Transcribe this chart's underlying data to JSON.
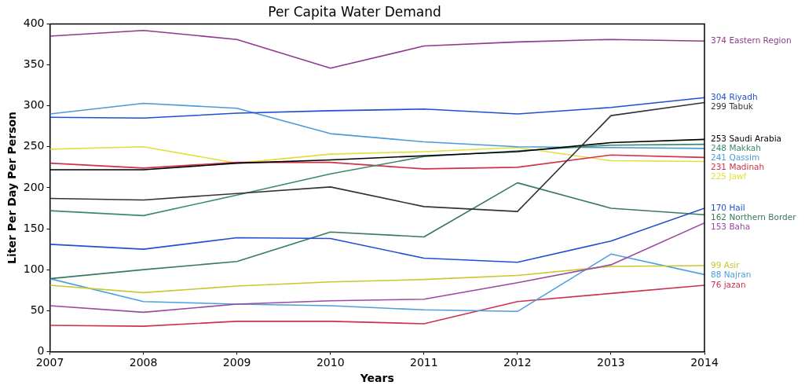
{
  "chart_data": {
    "type": "line",
    "title": "Per Capita Water Demand",
    "xlabel": "Years",
    "ylabel": "Liter Per Day Per Person",
    "x": [
      2007,
      2008,
      2009,
      2010,
      2011,
      2012,
      2013,
      2014
    ],
    "xlim": [
      2007,
      2014
    ],
    "xticks": [
      2007,
      2008,
      2009,
      2010,
      2011,
      2012,
      2013,
      2014
    ],
    "ylim": [
      0,
      400
    ],
    "yticks": [
      0,
      50,
      100,
      150,
      200,
      250,
      300,
      350,
      400
    ],
    "grid": false,
    "legend": "right",
    "marker": "none",
    "line_style": "solid",
    "series": [
      {
        "name": "374 Eastern Region",
        "color": "#8e3a8e",
        "values": [
          385,
          392,
          381,
          346,
          373,
          378,
          381,
          379
        ]
      },
      {
        "name": "304 Riyadh",
        "color": "#1f4fd0",
        "values": [
          286,
          285,
          291,
          294,
          296,
          290,
          298,
          310
        ]
      },
      {
        "name": "299 Tabuk",
        "color": "#333333",
        "values": [
          187,
          185,
          193,
          201,
          177,
          171,
          288,
          304
        ]
      },
      {
        "name": "253 Saudi Arabia",
        "color": "#000000",
        "values": [
          222,
          222,
          230,
          234,
          239,
          244,
          255,
          259
        ]
      },
      {
        "name": "248 Makkah",
        "color": "#3a8a6a",
        "values": [
          172,
          166,
          191,
          217,
          238,
          245,
          252,
          253
        ]
      },
      {
        "name": "241 Qassim",
        "color": "#4a9ad8",
        "values": [
          290,
          303,
          297,
          266,
          256,
          250,
          249,
          248
        ]
      },
      {
        "name": "231 Madinah",
        "color": "#d0304a",
        "values": [
          230,
          224,
          231,
          231,
          223,
          225,
          240,
          237
        ]
      },
      {
        "name": "225 Jawf",
        "color": "#e0e040",
        "values": [
          247,
          250,
          230,
          241,
          244,
          249,
          233,
          232
        ]
      },
      {
        "name": "170 Hail",
        "color": "#2050d0",
        "values": [
          131,
          125,
          139,
          138,
          114,
          109,
          135,
          175
        ]
      },
      {
        "name": "162 Northern Border",
        "color": "#3a7a5a",
        "values": [
          89,
          100,
          110,
          146,
          140,
          206,
          175,
          167
        ]
      },
      {
        "name": "153 Baha",
        "color": "#9a4aa0",
        "values": [
          56,
          48,
          58,
          62,
          64,
          84,
          106,
          157
        ]
      },
      {
        "name": "99 Asir",
        "color": "#c8c830",
        "values": [
          81,
          72,
          80,
          85,
          88,
          93,
          104,
          105
        ]
      },
      {
        "name": "88 Najran",
        "color": "#4aa0e0",
        "values": [
          89,
          61,
          58,
          56,
          51,
          49,
          119,
          94
        ]
      },
      {
        "name": "76 jazan",
        "color": "#d03050",
        "values": [
          32,
          31,
          37,
          37,
          34,
          61,
          71,
          81
        ]
      }
    ]
  }
}
